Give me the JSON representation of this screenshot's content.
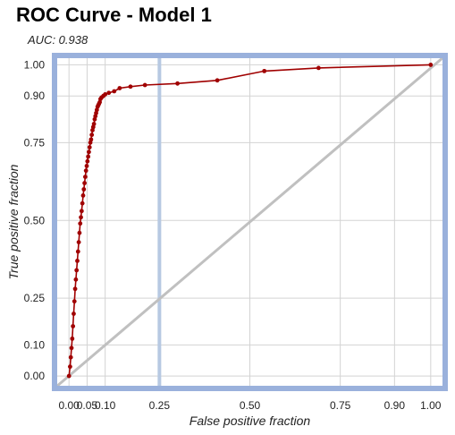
{
  "chart_data": {
    "type": "line",
    "title": "ROC Curve - Model 1",
    "subtitle": "AUC: 0.938",
    "xlabel": "False positive fraction",
    "ylabel": "True positive fraction",
    "xlim": [
      -0.04,
      1.04
    ],
    "ylim": [
      -0.04,
      1.03
    ],
    "x_ticks": [
      0.0,
      0.05,
      0.1,
      0.25,
      0.5,
      0.75,
      0.9,
      1.0
    ],
    "x_tick_labels": [
      "0.00",
      "0.05",
      "0.10",
      "0.25",
      "0.50",
      "0.75",
      "0.90",
      "1.00"
    ],
    "y_ticks": [
      0.0,
      0.1,
      0.25,
      0.5,
      0.75,
      0.9,
      1.0
    ],
    "y_tick_labels": [
      "0.00",
      "0.10",
      "0.25",
      "0.50",
      "0.75",
      "0.90",
      "1.00"
    ],
    "grid": true,
    "reference_vline_x": 0.25,
    "diagonal": true,
    "colors": {
      "curve": "#a00000",
      "marker": "#a00000",
      "frame": "#9ab1dc",
      "vline": "#b7c9e2",
      "diagonal": "#c0c0c0",
      "grid": "#d3d3d3"
    },
    "series": [
      {
        "x": [
          0.0,
          0.003,
          0.005,
          0.007,
          0.009,
          0.011,
          0.013,
          0.015,
          0.017,
          0.019,
          0.021,
          0.023,
          0.025,
          0.027,
          0.029,
          0.031,
          0.033,
          0.035,
          0.037,
          0.039,
          0.041,
          0.043,
          0.045,
          0.047,
          0.049,
          0.051,
          0.053,
          0.055,
          0.057,
          0.059,
          0.061,
          0.063,
          0.065,
          0.067,
          0.069,
          0.071,
          0.073,
          0.075,
          0.077,
          0.079,
          0.081,
          0.083,
          0.085,
          0.087,
          0.09,
          0.095,
          0.1,
          0.11,
          0.125,
          0.14,
          0.17,
          0.21,
          0.3,
          0.41,
          0.54,
          0.69,
          1.0
        ],
        "y": [
          0.0,
          0.03,
          0.06,
          0.09,
          0.12,
          0.16,
          0.2,
          0.24,
          0.28,
          0.31,
          0.34,
          0.37,
          0.4,
          0.43,
          0.46,
          0.49,
          0.51,
          0.53,
          0.555,
          0.58,
          0.6,
          0.62,
          0.64,
          0.66,
          0.675,
          0.69,
          0.705,
          0.72,
          0.735,
          0.75,
          0.76,
          0.775,
          0.79,
          0.8,
          0.81,
          0.825,
          0.835,
          0.845,
          0.855,
          0.865,
          0.87,
          0.875,
          0.88,
          0.89,
          0.895,
          0.9,
          0.905,
          0.91,
          0.915,
          0.925,
          0.93,
          0.935,
          0.94,
          0.95,
          0.98,
          0.99,
          1.0
        ]
      }
    ]
  }
}
